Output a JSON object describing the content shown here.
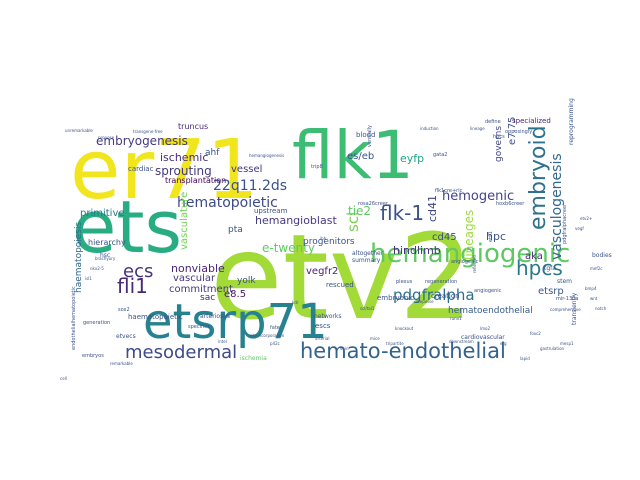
{
  "cloud": {
    "words": [
      {
        "text": "etv2",
        "color": "#a2da37"
      },
      {
        "text": "ets",
        "color": "#27ad81"
      },
      {
        "text": "er71",
        "color": "#f1e51d"
      },
      {
        "text": "flk1",
        "color": "#3dbc74"
      },
      {
        "text": "etsrp71",
        "color": "#26828e"
      },
      {
        "text": "hemangiogenic",
        "color": "#5ec962"
      },
      {
        "text": "hemato-endothelial",
        "color": "#33638d"
      },
      {
        "text": "embryoid",
        "color": "#2c728e"
      },
      {
        "text": "hpcs",
        "color": "#2a788e"
      },
      {
        "text": "flk-1",
        "color": "#3b528b"
      },
      {
        "text": "mesodermal",
        "color": "#3e4a89"
      },
      {
        "text": "fli1",
        "color": "#482878"
      },
      {
        "text": "ecs",
        "color": "#46327e"
      },
      {
        "text": "pdgfralpha",
        "color": "#2d708e"
      },
      {
        "text": "vasculogenesis",
        "color": "#31688e"
      },
      {
        "text": "22q11.2ds",
        "color": "#3b528b"
      },
      {
        "text": "hematopoietic",
        "color": "#3e4989"
      },
      {
        "text": "sprouting",
        "color": "#443983"
      },
      {
        "text": "hemogenic",
        "color": "#414487"
      },
      {
        "text": "embryogenesis",
        "color": "#453781"
      },
      {
        "text": "ischemic",
        "color": "#472d7b"
      },
      {
        "text": "eyfp",
        "color": "#20a386"
      },
      {
        "text": "es/eb",
        "color": "#3b528b"
      },
      {
        "text": "scl",
        "color": "#7ad151"
      },
      {
        "text": "tie2",
        "color": "#5ec962"
      },
      {
        "text": "hemangioblast",
        "color": "#443a83"
      },
      {
        "text": "hindlimb",
        "color": "#46337f"
      },
      {
        "text": "nonviable",
        "color": "#482677"
      },
      {
        "text": "vascular",
        "color": "#453882"
      },
      {
        "text": "commitment",
        "color": "#453781"
      },
      {
        "text": "vegfr2",
        "color": "#482173"
      },
      {
        "text": "e-twenty",
        "color": "#5ec962"
      },
      {
        "text": "primitive",
        "color": "#2a788e"
      },
      {
        "text": "vasculature",
        "color": "#73d056"
      },
      {
        "text": "hpc",
        "color": "#3b528b"
      },
      {
        "text": "cd45",
        "color": "#3e4a89"
      },
      {
        "text": "cd41",
        "color": "#414487"
      },
      {
        "text": "aka",
        "color": "#472c7a"
      },
      {
        "text": "e7.75",
        "color": "#3b528b"
      },
      {
        "text": "etsrp",
        "color": "#39568c"
      },
      {
        "text": "hematoendothelial",
        "color": "#365c8d"
      },
      {
        "text": "lineages",
        "color": "#9fda3a"
      },
      {
        "text": "governs",
        "color": "#3f4788"
      },
      {
        "text": "haematopoiesis",
        "color": "#31688e"
      },
      {
        "text": "e8.5",
        "color": "#481467"
      },
      {
        "text": "vessel",
        "color": "#46337f"
      },
      {
        "text": "ahf",
        "color": "#3b528b"
      },
      {
        "text": "sac",
        "color": "#482475"
      },
      {
        "text": "yolk",
        "color": "#3b528b"
      },
      {
        "text": "progenitors",
        "color": "#3b528b"
      },
      {
        "text": "pta",
        "color": "#3b528b"
      },
      {
        "text": "truncus",
        "color": "#482878"
      },
      {
        "text": "transplantation",
        "color": "#440154"
      },
      {
        "text": "hierarchy",
        "color": "#3b528b"
      },
      {
        "text": "specialized",
        "color": "#482475"
      },
      {
        "text": "reprogramming",
        "color": "#3b528b"
      },
      {
        "text": "cardiac",
        "color": "#3b528b"
      },
      {
        "text": "upstream",
        "color": "#3b528b"
      },
      {
        "text": "altogether",
        "color": "#3b528b"
      },
      {
        "text": "summary",
        "color": "#3b528b"
      },
      {
        "text": "creation",
        "color": "#3b528b"
      },
      {
        "text": "embryonic",
        "color": "#3b528b"
      },
      {
        "text": "rescued",
        "color": "#3b528b"
      },
      {
        "text": "escs",
        "color": "#3b528b"
      },
      {
        "text": "networks",
        "color": "#3b528b"
      },
      {
        "text": "arteriosus",
        "color": "#3b528b"
      },
      {
        "text": "haematopoietic",
        "color": "#3b528b"
      },
      {
        "text": "cardiovascular",
        "color": "#3b528b"
      },
      {
        "text": "transiently",
        "color": "#3b528b"
      },
      {
        "text": "bodies",
        "color": "#3b528b"
      },
      {
        "text": "stem",
        "color": "#3b528b"
      },
      {
        "text": "blood",
        "color": "#3b528b"
      },
      {
        "text": "hsc",
        "color": "#3b528b"
      },
      {
        "text": "ischemia",
        "color": "#5ec962"
      },
      {
        "text": "embryos",
        "color": "#3b528b"
      },
      {
        "text": "specifies",
        "color": "#3b528b"
      },
      {
        "text": "generation",
        "color": "#3b528b"
      },
      {
        "text": "etvecs",
        "color": "#3b528b"
      },
      {
        "text": "tgfa",
        "color": "#3b528b"
      },
      {
        "text": "gata2",
        "color": "#3b528b"
      },
      {
        "text": "define",
        "color": "#3b528b"
      },
      {
        "text": "opposingly",
        "color": "#3b528b"
      },
      {
        "text": "hpcs",
        "color": "#3b528b"
      },
      {
        "text": "trip8",
        "color": "#3b528b"
      },
      {
        "text": "ventrally",
        "color": "#3b528b"
      },
      {
        "text": "angiogenic",
        "color": "#3b528b"
      },
      {
        "text": "endothelialhematopoietic",
        "color": "#3b528b"
      },
      {
        "text": "hemangiogenesis",
        "color": "#3b528b"
      },
      {
        "text": "transgene-free",
        "color": "#3b528b"
      },
      {
        "text": "unremarkable",
        "color": "#3b528b"
      },
      {
        "text": "propose",
        "color": "#3b528b"
      },
      {
        "text": "rosa26creer",
        "color": "#3b528b"
      },
      {
        "text": "flk1cre+rlc",
        "color": "#3b528b"
      },
      {
        "text": "hoxb6creer",
        "color": "#3b528b"
      },
      {
        "text": "pdgfralphacreer",
        "color": "#3b528b"
      },
      {
        "text": "ets1",
        "color": "#3b528b"
      },
      {
        "text": "mir-130a",
        "color": "#3b528b"
      },
      {
        "text": "comprehensive",
        "color": "#3b528b"
      },
      {
        "text": "plexus",
        "color": "#3b528b"
      },
      {
        "text": "regeneration",
        "color": "#3b528b"
      },
      {
        "text": "reflected",
        "color": "#3b528b"
      },
      {
        "text": "angiogenic",
        "color": "#3b528b"
      },
      {
        "text": "downstream",
        "color": "#3b528b"
      },
      {
        "text": "stepwise",
        "color": "#3b528b"
      },
      {
        "text": "ets-incorporation",
        "color": "#3b528b"
      },
      {
        "text": "inter",
        "color": "#3b528b"
      },
      {
        "text": "sox2",
        "color": "#3b528b"
      },
      {
        "text": "fate",
        "color": "#3b528b"
      },
      {
        "text": "p42c",
        "color": "#3b528b"
      },
      {
        "text": "lapid",
        "color": "#3b528b"
      },
      {
        "text": "gastrulation",
        "color": "#3b528b"
      },
      {
        "text": "cell",
        "color": "#3b528b"
      },
      {
        "text": "induction",
        "color": "#3b528b"
      },
      {
        "text": "lineage",
        "color": "#3b528b"
      },
      {
        "text": "tripartite",
        "color": "#3b528b"
      },
      {
        "text": "remarkable",
        "color": "#3b528b"
      },
      {
        "text": "etv2+",
        "color": "#3b528b"
      },
      {
        "text": "vegf",
        "color": "#3b528b"
      },
      {
        "text": "arterial",
        "color": "#3b528b"
      },
      {
        "text": "vein",
        "color": "#3b528b"
      },
      {
        "text": "knockout",
        "color": "#3b528b"
      },
      {
        "text": "mice",
        "color": "#3b528b"
      },
      {
        "text": "kdr",
        "color": "#3b528b"
      },
      {
        "text": "scl/tal1",
        "color": "#3b528b"
      },
      {
        "text": "runx1",
        "color": "#3b528b"
      },
      {
        "text": "lmo2",
        "color": "#3b528b"
      },
      {
        "text": "erg",
        "color": "#3b528b"
      },
      {
        "text": "foxc2",
        "color": "#3b528b"
      },
      {
        "text": "mesp1",
        "color": "#3b528b"
      },
      {
        "text": "brachyury",
        "color": "#3b528b"
      },
      {
        "text": "nkx2-5",
        "color": "#3b528b"
      },
      {
        "text": "isl1",
        "color": "#3b528b"
      },
      {
        "text": "mef2c",
        "color": "#3b528b"
      },
      {
        "text": "bmp4",
        "color": "#3b528b"
      },
      {
        "text": "wnt",
        "color": "#3b528b"
      },
      {
        "text": "notch",
        "color": "#3b528b"
      },
      {
        "text": "ihh",
        "color": "#3b528b"
      }
    ]
  }
}
